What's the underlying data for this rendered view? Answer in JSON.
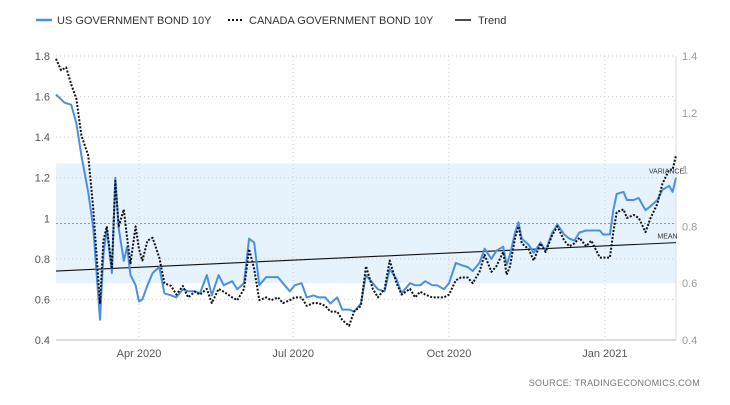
{
  "chart_data": {
    "type": "line",
    "legend": {
      "placement": "top-left",
      "items": [
        {
          "label": "US GOVERNMENT BOND 10Y",
          "color": "#4a90e2",
          "style": "solid"
        },
        {
          "label": "CANADA GOVERNMENT BOND 10Y",
          "color": "#111111",
          "style": "dotted"
        },
        {
          "label": "Trend",
          "color": "#111111",
          "style": "solid"
        }
      ]
    },
    "x_ticks": [
      {
        "label": "Apr 2020",
        "date": "2020-04-01"
      },
      {
        "label": "Jul 2020",
        "date": "2020-07-01"
      },
      {
        "label": "Oct 2020",
        "date": "2020-10-01"
      },
      {
        "label": "Jan 2021",
        "date": "2021-01-01"
      }
    ],
    "x_range": [
      "2020-02-12",
      "2021-02-12"
    ],
    "y_left": {
      "ticks": [
        "1.8",
        "1.6",
        "1.4",
        "1.2",
        "1",
        "0.8",
        "0.6",
        "0.4"
      ],
      "range": [
        0.4,
        1.8
      ]
    },
    "y_right": {
      "ticks": [
        "1.4",
        "1.2",
        "1",
        "0.8",
        "0.6",
        "0.4"
      ],
      "range": [
        0.4,
        1.4
      ]
    },
    "grid": true,
    "variance_band": {
      "left_axis_range": [
        0.68,
        1.27
      ],
      "color": "#e6f2fc"
    },
    "annotations": [
      {
        "text": "VARIANCE",
        "date": "2021-01-27",
        "value": 1.22
      },
      {
        "text": "MEAN",
        "date": "2021-02-01",
        "value": 0.9
      }
    ],
    "mean_line": {
      "left_axis_value": 0.975
    },
    "trend": {
      "start": {
        "date": "2020-02-12",
        "value": 0.74
      },
      "end": {
        "date": "2021-02-12",
        "value": 0.88
      }
    },
    "series": [
      {
        "name": "US GOVERNMENT BOND 10Y",
        "axis": "left",
        "color": "#4a90e2",
        "points": [
          [
            "2020-02-12",
            1.61
          ],
          [
            "2020-02-17",
            1.57
          ],
          [
            "2020-02-21",
            1.56
          ],
          [
            "2020-02-24",
            1.47
          ],
          [
            "2020-02-27",
            1.31
          ],
          [
            "2020-03-02",
            1.13
          ],
          [
            "2020-03-05",
            0.95
          ],
          [
            "2020-03-09",
            0.5
          ],
          [
            "2020-03-11",
            0.82
          ],
          [
            "2020-03-13",
            0.95
          ],
          [
            "2020-03-16",
            0.73
          ],
          [
            "2020-03-18",
            1.2
          ],
          [
            "2020-03-20",
            0.95
          ],
          [
            "2020-03-23",
            0.79
          ],
          [
            "2020-03-25",
            0.86
          ],
          [
            "2020-03-27",
            0.72
          ],
          [
            "2020-03-30",
            0.67
          ],
          [
            "2020-04-01",
            0.59
          ],
          [
            "2020-04-03",
            0.6
          ],
          [
            "2020-04-06",
            0.67
          ],
          [
            "2020-04-09",
            0.73
          ],
          [
            "2020-04-13",
            0.76
          ],
          [
            "2020-04-16",
            0.63
          ],
          [
            "2020-04-20",
            0.62
          ],
          [
            "2020-04-23",
            0.61
          ],
          [
            "2020-04-27",
            0.65
          ],
          [
            "2020-04-30",
            0.64
          ],
          [
            "2020-05-04",
            0.64
          ],
          [
            "2020-05-07",
            0.63
          ],
          [
            "2020-05-11",
            0.72
          ],
          [
            "2020-05-14",
            0.62
          ],
          [
            "2020-05-18",
            0.72
          ],
          [
            "2020-05-21",
            0.67
          ],
          [
            "2020-05-26",
            0.69
          ],
          [
            "2020-05-29",
            0.65
          ],
          [
            "2020-06-02",
            0.68
          ],
          [
            "2020-06-05",
            0.9
          ],
          [
            "2020-06-08",
            0.88
          ],
          [
            "2020-06-11",
            0.67
          ],
          [
            "2020-06-15",
            0.71
          ],
          [
            "2020-06-18",
            0.71
          ],
          [
            "2020-06-22",
            0.71
          ],
          [
            "2020-06-25",
            0.68
          ],
          [
            "2020-06-29",
            0.64
          ],
          [
            "2020-07-02",
            0.67
          ],
          [
            "2020-07-06",
            0.68
          ],
          [
            "2020-07-09",
            0.61
          ],
          [
            "2020-07-13",
            0.62
          ],
          [
            "2020-07-16",
            0.61
          ],
          [
            "2020-07-20",
            0.61
          ],
          [
            "2020-07-23",
            0.58
          ],
          [
            "2020-07-27",
            0.61
          ],
          [
            "2020-07-30",
            0.55
          ],
          [
            "2020-08-03",
            0.55
          ],
          [
            "2020-08-06",
            0.54
          ],
          [
            "2020-08-10",
            0.58
          ],
          [
            "2020-08-13",
            0.72
          ],
          [
            "2020-08-17",
            0.68
          ],
          [
            "2020-08-20",
            0.65
          ],
          [
            "2020-08-24",
            0.64
          ],
          [
            "2020-08-27",
            0.75
          ],
          [
            "2020-08-31",
            0.7
          ],
          [
            "2020-09-03",
            0.63
          ],
          [
            "2020-09-08",
            0.68
          ],
          [
            "2020-09-11",
            0.67
          ],
          [
            "2020-09-14",
            0.67
          ],
          [
            "2020-09-17",
            0.69
          ],
          [
            "2020-09-21",
            0.67
          ],
          [
            "2020-09-24",
            0.67
          ],
          [
            "2020-09-28",
            0.65
          ],
          [
            "2020-10-01",
            0.68
          ],
          [
            "2020-10-05",
            0.78
          ],
          [
            "2020-10-08",
            0.77
          ],
          [
            "2020-10-12",
            0.76
          ],
          [
            "2020-10-15",
            0.74
          ],
          [
            "2020-10-19",
            0.78
          ],
          [
            "2020-10-22",
            0.85
          ],
          [
            "2020-10-26",
            0.8
          ],
          [
            "2020-10-29",
            0.84
          ],
          [
            "2020-11-02",
            0.86
          ],
          [
            "2020-11-04",
            0.77
          ],
          [
            "2020-11-06",
            0.82
          ],
          [
            "2020-11-09",
            0.93
          ],
          [
            "2020-11-11",
            0.98
          ],
          [
            "2020-11-13",
            0.9
          ],
          [
            "2020-11-17",
            0.87
          ],
          [
            "2020-11-20",
            0.83
          ],
          [
            "2020-11-24",
            0.88
          ],
          [
            "2020-11-27",
            0.84
          ],
          [
            "2020-12-01",
            0.93
          ],
          [
            "2020-12-04",
            0.97
          ],
          [
            "2020-12-08",
            0.92
          ],
          [
            "2020-12-11",
            0.9
          ],
          [
            "2020-12-14",
            0.89
          ],
          [
            "2020-12-17",
            0.93
          ],
          [
            "2020-12-21",
            0.94
          ],
          [
            "2020-12-24",
            0.94
          ],
          [
            "2020-12-29",
            0.94
          ],
          [
            "2020-12-31",
            0.92
          ],
          [
            "2021-01-04",
            0.92
          ],
          [
            "2021-01-06",
            1.04
          ],
          [
            "2021-01-08",
            1.12
          ],
          [
            "2021-01-12",
            1.13
          ],
          [
            "2021-01-14",
            1.09
          ],
          [
            "2021-01-18",
            1.09
          ],
          [
            "2021-01-21",
            1.1
          ],
          [
            "2021-01-25",
            1.04
          ],
          [
            "2021-01-28",
            1.06
          ],
          [
            "2021-02-01",
            1.09
          ],
          [
            "2021-02-04",
            1.14
          ],
          [
            "2021-02-08",
            1.16
          ],
          [
            "2021-02-10",
            1.13
          ],
          [
            "2021-02-12",
            1.2
          ]
        ]
      },
      {
        "name": "CANADA GOVERNMENT BOND 10Y",
        "axis": "right",
        "color": "#111111",
        "points": [
          [
            "2020-02-12",
            1.39
          ],
          [
            "2020-02-15",
            1.35
          ],
          [
            "2020-02-18",
            1.36
          ],
          [
            "2020-02-21",
            1.3
          ],
          [
            "2020-02-24",
            1.25
          ],
          [
            "2020-02-27",
            1.12
          ],
          [
            "2020-03-02",
            1.05
          ],
          [
            "2020-03-05",
            0.86
          ],
          [
            "2020-03-09",
            0.53
          ],
          [
            "2020-03-11",
            0.75
          ],
          [
            "2020-03-13",
            0.8
          ],
          [
            "2020-03-16",
            0.65
          ],
          [
            "2020-03-18",
            0.96
          ],
          [
            "2020-03-20",
            0.8
          ],
          [
            "2020-03-23",
            0.86
          ],
          [
            "2020-03-25",
            0.76
          ],
          [
            "2020-03-27",
            0.67
          ],
          [
            "2020-03-30",
            0.8
          ],
          [
            "2020-04-01",
            0.72
          ],
          [
            "2020-04-03",
            0.68
          ],
          [
            "2020-04-06",
            0.75
          ],
          [
            "2020-04-09",
            0.76
          ],
          [
            "2020-04-13",
            0.69
          ],
          [
            "2020-04-16",
            0.6
          ],
          [
            "2020-04-20",
            0.59
          ],
          [
            "2020-04-23",
            0.56
          ],
          [
            "2020-04-27",
            0.59
          ],
          [
            "2020-04-30",
            0.55
          ],
          [
            "2020-05-04",
            0.57
          ],
          [
            "2020-05-07",
            0.56
          ],
          [
            "2020-05-11",
            0.58
          ],
          [
            "2020-05-14",
            0.53
          ],
          [
            "2020-05-18",
            0.58
          ],
          [
            "2020-05-21",
            0.57
          ],
          [
            "2020-05-26",
            0.55
          ],
          [
            "2020-05-29",
            0.54
          ],
          [
            "2020-06-02",
            0.58
          ],
          [
            "2020-06-05",
            0.72
          ],
          [
            "2020-06-08",
            0.65
          ],
          [
            "2020-06-11",
            0.54
          ],
          [
            "2020-06-15",
            0.55
          ],
          [
            "2020-06-18",
            0.54
          ],
          [
            "2020-06-22",
            0.55
          ],
          [
            "2020-06-25",
            0.53
          ],
          [
            "2020-06-29",
            0.54
          ],
          [
            "2020-07-02",
            0.55
          ],
          [
            "2020-07-06",
            0.55
          ],
          [
            "2020-07-09",
            0.52
          ],
          [
            "2020-07-13",
            0.53
          ],
          [
            "2020-07-16",
            0.53
          ],
          [
            "2020-07-20",
            0.52
          ],
          [
            "2020-07-23",
            0.5
          ],
          [
            "2020-07-27",
            0.5
          ],
          [
            "2020-07-30",
            0.47
          ],
          [
            "2020-08-03",
            0.45
          ],
          [
            "2020-08-06",
            0.5
          ],
          [
            "2020-08-10",
            0.52
          ],
          [
            "2020-08-13",
            0.66
          ],
          [
            "2020-08-17",
            0.58
          ],
          [
            "2020-08-20",
            0.55
          ],
          [
            "2020-08-24",
            0.58
          ],
          [
            "2020-08-27",
            0.68
          ],
          [
            "2020-08-31",
            0.6
          ],
          [
            "2020-09-03",
            0.56
          ],
          [
            "2020-09-08",
            0.58
          ],
          [
            "2020-09-11",
            0.55
          ],
          [
            "2020-09-14",
            0.57
          ],
          [
            "2020-09-17",
            0.56
          ],
          [
            "2020-09-21",
            0.55
          ],
          [
            "2020-09-24",
            0.55
          ],
          [
            "2020-09-28",
            0.55
          ],
          [
            "2020-10-01",
            0.56
          ],
          [
            "2020-10-05",
            0.61
          ],
          [
            "2020-10-08",
            0.62
          ],
          [
            "2020-10-12",
            0.62
          ],
          [
            "2020-10-15",
            0.6
          ],
          [
            "2020-10-19",
            0.64
          ],
          [
            "2020-10-22",
            0.7
          ],
          [
            "2020-10-26",
            0.64
          ],
          [
            "2020-10-29",
            0.66
          ],
          [
            "2020-11-02",
            0.71
          ],
          [
            "2020-11-04",
            0.63
          ],
          [
            "2020-11-06",
            0.66
          ],
          [
            "2020-11-09",
            0.76
          ],
          [
            "2020-11-11",
            0.8
          ],
          [
            "2020-11-13",
            0.74
          ],
          [
            "2020-11-17",
            0.72
          ],
          [
            "2020-11-20",
            0.68
          ],
          [
            "2020-11-24",
            0.74
          ],
          [
            "2020-11-27",
            0.71
          ],
          [
            "2020-12-01",
            0.77
          ],
          [
            "2020-12-04",
            0.8
          ],
          [
            "2020-12-08",
            0.75
          ],
          [
            "2020-12-11",
            0.73
          ],
          [
            "2020-12-14",
            0.74
          ],
          [
            "2020-12-17",
            0.76
          ],
          [
            "2020-12-21",
            0.73
          ],
          [
            "2020-12-24",
            0.75
          ],
          [
            "2020-12-29",
            0.69
          ],
          [
            "2020-12-31",
            0.69
          ],
          [
            "2021-01-04",
            0.69
          ],
          [
            "2021-01-06",
            0.78
          ],
          [
            "2021-01-08",
            0.85
          ],
          [
            "2021-01-12",
            0.86
          ],
          [
            "2021-01-14",
            0.83
          ],
          [
            "2021-01-18",
            0.84
          ],
          [
            "2021-01-21",
            0.83
          ],
          [
            "2021-01-25",
            0.78
          ],
          [
            "2021-01-28",
            0.83
          ],
          [
            "2021-02-01",
            0.88
          ],
          [
            "2021-02-04",
            0.95
          ],
          [
            "2021-02-08",
            1.0
          ],
          [
            "2021-02-10",
            1.0
          ],
          [
            "2021-02-12",
            1.05
          ]
        ]
      }
    ]
  },
  "source": "SOURCE:  TRADINGECONOMICS.COM"
}
